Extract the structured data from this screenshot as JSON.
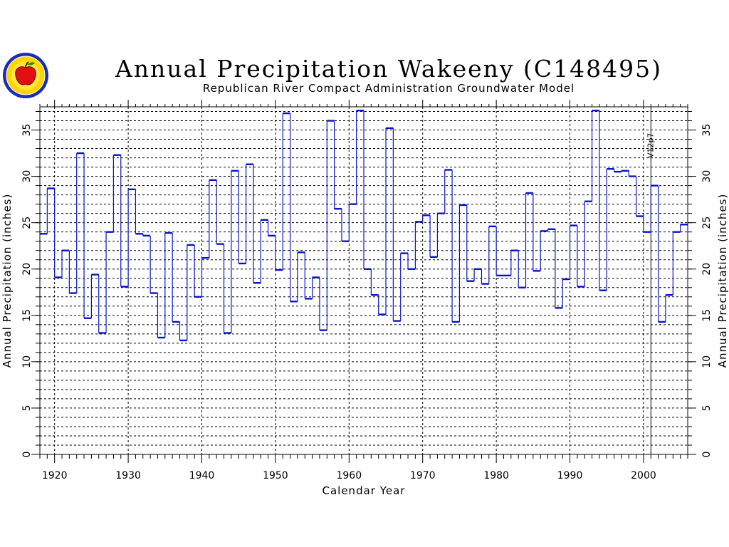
{
  "chart_data": {
    "type": "line",
    "step": true,
    "title": "Annual Precipitation Wakeeny (C148495)",
    "subtitle": "Republican River Compact Administration Groundwater Model",
    "xlabel": "Calendar Year",
    "ylabel_left": "Annual Precipitation (inches)",
    "ylabel_right": "Annual Precipitation (inches)",
    "xlim": [
      1918,
      2006
    ],
    "ylim": [
      0,
      37.5
    ],
    "x_ticks": [
      1920,
      1930,
      1940,
      1950,
      1960,
      1970,
      1980,
      1990,
      2000
    ],
    "y_ticks": [
      0,
      5,
      10,
      15,
      20,
      25,
      30,
      35
    ],
    "y_minor_step": 1,
    "grid": true,
    "marker": {
      "year": 2001,
      "label": "V12p7"
    },
    "series": [
      {
        "color": "#0a14c8",
        "years": [
          1918,
          1919,
          1920,
          1921,
          1922,
          1923,
          1924,
          1925,
          1926,
          1927,
          1928,
          1929,
          1930,
          1931,
          1932,
          1933,
          1934,
          1935,
          1936,
          1937,
          1938,
          1939,
          1940,
          1941,
          1942,
          1943,
          1944,
          1945,
          1946,
          1947,
          1948,
          1949,
          1950,
          1951,
          1952,
          1953,
          1954,
          1955,
          1956,
          1957,
          1958,
          1959,
          1960,
          1961,
          1962,
          1963,
          1964,
          1965,
          1966,
          1967,
          1968,
          1969,
          1970,
          1971,
          1972,
          1973,
          1974,
          1975,
          1976,
          1977,
          1978,
          1979,
          1980,
          1981,
          1982,
          1983,
          1984,
          1985,
          1986,
          1987,
          1988,
          1989,
          1990,
          1991,
          1992,
          1993,
          1994,
          1995,
          1996,
          1997,
          1998,
          1999,
          2000,
          2001,
          2002,
          2003,
          2004,
          2005
        ],
        "values": [
          23.8,
          28.7,
          19.1,
          22.0,
          17.4,
          32.5,
          14.7,
          19.4,
          13.1,
          24.0,
          32.3,
          18.1,
          28.6,
          23.8,
          23.6,
          17.4,
          12.6,
          23.9,
          14.3,
          12.3,
          22.6,
          17.0,
          21.2,
          29.6,
          22.7,
          13.1,
          30.6,
          20.6,
          31.3,
          18.5,
          25.3,
          23.6,
          19.9,
          36.8,
          16.5,
          21.8,
          16.8,
          19.1,
          13.4,
          36.0,
          26.5,
          23.0,
          27.0,
          37.1,
          20.0,
          17.2,
          15.1,
          35.2,
          14.4,
          21.7,
          20.0,
          25.1,
          25.8,
          21.3,
          26.0,
          30.7,
          14.3,
          26.9,
          18.7,
          20.0,
          18.4,
          24.6,
          19.3,
          19.3,
          22.0,
          18.0,
          28.2,
          19.8,
          24.1,
          24.3,
          15.8,
          18.9,
          24.7,
          18.1,
          27.3,
          37.1,
          17.7,
          30.8,
          30.5,
          30.6,
          30.0,
          25.7,
          24.0,
          29.0,
          14.3,
          17.2,
          24.0,
          24.8
        ]
      }
    ]
  },
  "colors": {
    "series": "#0a14c8",
    "axis": "#000000",
    "grid": "#000000"
  },
  "logo": {
    "icon": "apple-seal-icon"
  }
}
